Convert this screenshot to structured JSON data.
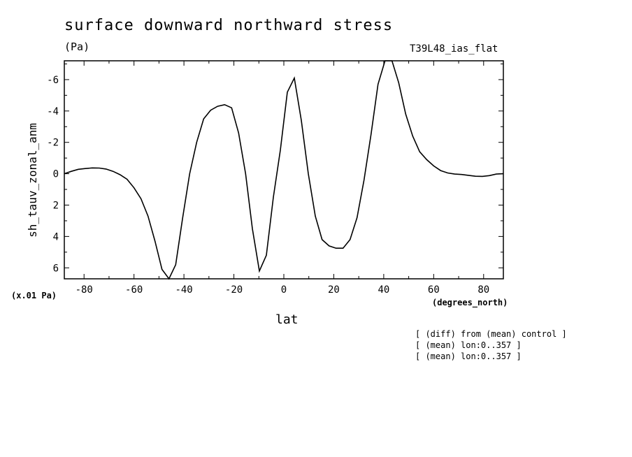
{
  "chart_data": {
    "type": "line",
    "title": "surface downward northward stress",
    "units": "(Pa)",
    "experiment": "T39L48_ias_flat",
    "scale_note": "(x.01 Pa)",
    "xlabel": "lat",
    "xunits": "(degrees_north)",
    "ylabel": "sh_tauv_zonal_anm",
    "xlim": [
      -87.9,
      87.9
    ],
    "ylim": [
      6.7,
      -7.2
    ],
    "y_inverted": true,
    "xticks": [
      -80,
      -60,
      -40,
      -20,
      0,
      20,
      40,
      60,
      80
    ],
    "yticks": [
      -6,
      -4,
      -2,
      0,
      2,
      4,
      6
    ],
    "annotations": [
      "[ (diff) from (mean) control ]",
      "[ (mean) lon:0..357 ]",
      "[ (mean) lon:0..357 ]"
    ],
    "grid": false,
    "series": [
      {
        "x": [
          -87.9,
          -85.1,
          -82.3,
          -79.5,
          -76.7,
          -73.9,
          -71.2,
          -68.4,
          -65.6,
          -62.8,
          -60.0,
          -57.2,
          -54.4,
          -51.6,
          -48.8,
          -46.0,
          -43.3,
          -40.5,
          -37.7,
          -34.9,
          -32.1,
          -29.3,
          -26.5,
          -23.7,
          -20.9,
          -18.1,
          -15.3,
          -12.6,
          -9.8,
          -7.0,
          -4.2,
          -1.4,
          1.4,
          4.2,
          7.0,
          9.8,
          12.6,
          15.3,
          18.1,
          20.9,
          23.7,
          26.5,
          29.3,
          32.1,
          34.9,
          37.7,
          40.5,
          43.3,
          46.0,
          48.8,
          51.6,
          54.4,
          57.2,
          60.0,
          62.8,
          65.6,
          68.4,
          71.2,
          73.9,
          76.7,
          79.5,
          82.3,
          85.1,
          87.9
        ],
        "values": [
          0.0,
          -0.15,
          -0.28,
          -0.33,
          -0.37,
          -0.36,
          -0.3,
          -0.15,
          0.06,
          0.35,
          0.9,
          1.6,
          2.7,
          4.3,
          6.1,
          6.7,
          5.8,
          2.8,
          0.0,
          -2.0,
          -3.5,
          -4.05,
          -4.3,
          -4.4,
          -4.2,
          -2.6,
          0.0,
          3.5,
          6.2,
          5.2,
          1.5,
          -1.5,
          -5.2,
          -6.1,
          -3.4,
          0.0,
          2.7,
          4.2,
          4.6,
          4.75,
          4.75,
          4.2,
          2.8,
          0.4,
          -2.5,
          -5.7,
          -7.2,
          -7.2,
          -5.8,
          -3.8,
          -2.4,
          -1.4,
          -0.9,
          -0.5,
          -0.2,
          -0.05,
          0.02,
          0.05,
          0.1,
          0.16,
          0.17,
          0.12,
          0.02,
          0.0
        ]
      }
    ]
  }
}
